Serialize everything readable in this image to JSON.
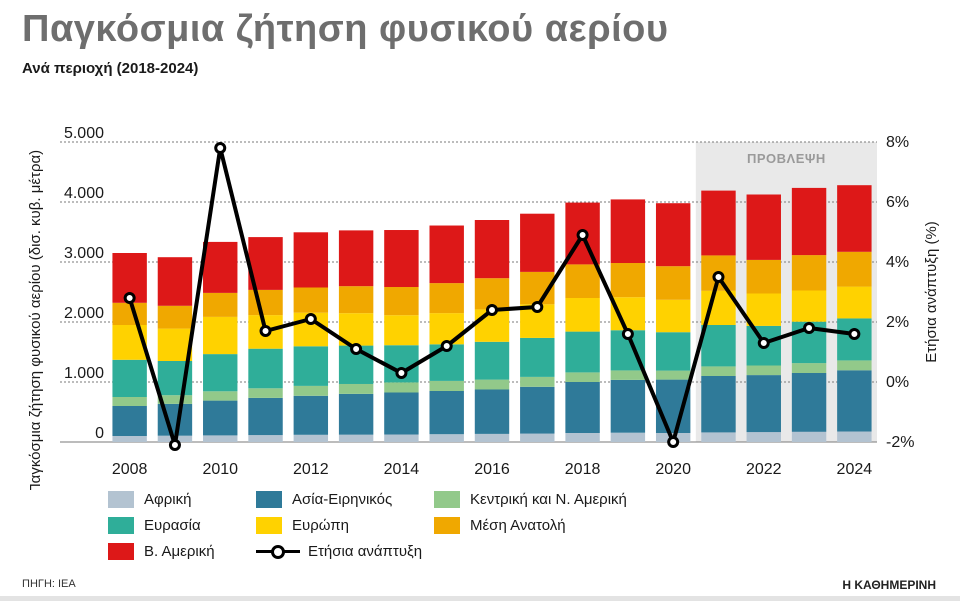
{
  "header": {
    "title": "Παγκόσμια ζήτηση φυσικού αερίου",
    "subtitle": "Ανά περιοχή (2018-2024)"
  },
  "footer": {
    "source": "ΠΗΓΗ: IEA",
    "brand": "Η ΚΑΘΗΜΕΡΙΝΗ"
  },
  "chart_data": {
    "type": "bar",
    "stacked": true,
    "ylabel": "Παγκόσμια ζήτηση φυσικού αερίου (δισ. κυβ. μέτρα)",
    "y2label": "Ετήσια ανάπτυξη (%)",
    "ylim": [
      0,
      5000
    ],
    "y2lim": [
      -2,
      8
    ],
    "yticks": [
      "0",
      "1.000",
      "2.000",
      "3.000",
      "4.000",
      "5.000"
    ],
    "y2ticks": [
      "-2%",
      "0%",
      "2%",
      "4%",
      "6%",
      "8%"
    ],
    "x_tick_labels": [
      "2008",
      "2010",
      "2012",
      "2014",
      "2016",
      "2018",
      "2020",
      "2022",
      "2024"
    ],
    "forecast_label": "ΠΡΟΒΛΕΨΗ",
    "forecast_from": 2021,
    "grid": "horizontal",
    "legend_placement": "bottom",
    "categories": [
      2008,
      2009,
      2010,
      2011,
      2012,
      2013,
      2014,
      2015,
      2016,
      2017,
      2018,
      2019,
      2020,
      2021,
      2022,
      2023,
      2024
    ],
    "series": [
      {
        "name": "Αφρική",
        "color": "#b3c3d1",
        "values": [
          100,
          105,
          110,
          115,
          120,
          122,
          125,
          130,
          135,
          140,
          150,
          155,
          150,
          160,
          165,
          170,
          175
        ]
      },
      {
        "name": "Ασία-Ειρηνικός",
        "color": "#2f7a99",
        "values": [
          500,
          530,
          580,
          620,
          650,
          680,
          700,
          720,
          740,
          780,
          850,
          880,
          890,
          940,
          950,
          980,
          1020
        ]
      },
      {
        "name": "Κεντρική και Ν. Αμερική",
        "color": "#92c98a",
        "values": [
          150,
          145,
          155,
          160,
          165,
          165,
          168,
          168,
          165,
          165,
          160,
          158,
          150,
          160,
          160,
          165,
          165
        ]
      },
      {
        "name": "Ευρασία",
        "color": "#2fae99",
        "values": [
          620,
          570,
          620,
          660,
          660,
          640,
          620,
          610,
          630,
          650,
          680,
          670,
          640,
          690,
          660,
          690,
          700
        ]
      },
      {
        "name": "Ευρώπη",
        "color": "#ffd200",
        "values": [
          580,
          540,
          620,
          560,
          560,
          540,
          500,
          520,
          540,
          560,
          560,
          550,
          540,
          570,
          540,
          520,
          530
        ]
      },
      {
        "name": "Μέση Ανατολή",
        "color": "#f0a800",
        "values": [
          370,
          380,
          400,
          420,
          420,
          450,
          470,
          500,
          520,
          540,
          560,
          570,
          560,
          590,
          560,
          590,
          580
        ]
      },
      {
        "name": "Β. Αμερική",
        "color": "#dd1818",
        "values": [
          830,
          810,
          850,
          880,
          920,
          930,
          950,
          960,
          970,
          970,
          1030,
          1060,
          1050,
          1080,
          1090,
          1120,
          1110
        ]
      }
    ],
    "line_series": {
      "name": "Ετήσια ανάπτυξη",
      "axis": "right",
      "values": [
        2.8,
        -2.1,
        7.8,
        1.7,
        2.1,
        1.1,
        0.3,
        1.2,
        2.4,
        2.5,
        4.9,
        1.6,
        -2.0,
        3.5,
        1.3,
        1.8,
        1.6
      ]
    }
  }
}
